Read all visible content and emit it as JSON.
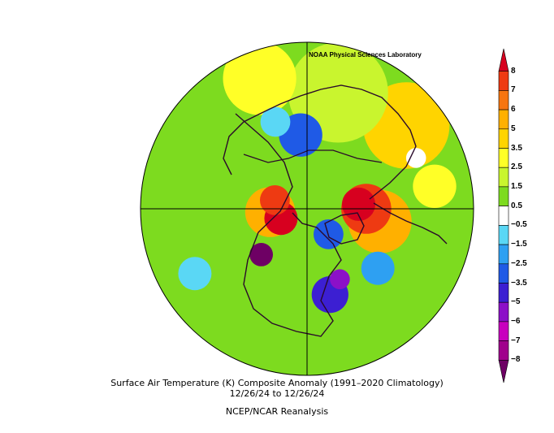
{
  "credit": "NOAA Physical Sciences Laboratory",
  "title_line1": "Surface Air Temperature (K) Composite Anomaly (1991–2020 Climatology)",
  "title_line2": "12/26/24  to 12/26/24",
  "source": "NCEP/NCAR Reanalysis",
  "colorbar": {
    "labels": [
      "8",
      "7",
      "6",
      "5",
      "3.5",
      "2.5",
      "1.5",
      "0.5",
      "−0.5",
      "−1.5",
      "−2.5",
      "−3.5",
      "−5",
      "−6",
      "−7",
      "−8"
    ],
    "colors": [
      "#d7001f",
      "#ee3a12",
      "#f7750f",
      "#ffb000",
      "#ffd400",
      "#ffff27",
      "#c9f52e",
      "#7ddb1f",
      "#ffffff",
      "#5ad7f5",
      "#2ea0f2",
      "#1f5ae6",
      "#3c1fd2",
      "#8c10c8",
      "#c800be",
      "#a0008c",
      "#6e0064"
    ]
  },
  "map": {
    "projection": "north-polar-stereographic",
    "background": "#7ddb1f",
    "anomaly_patches": [
      {
        "color": "#ffd400",
        "lon": -130,
        "lat": 20,
        "r": 0.26
      },
      {
        "color": "#c9f52e",
        "lon": -165,
        "lat": 25,
        "r": 0.3
      },
      {
        "color": "#ffff27",
        "lon": 160,
        "lat": 15,
        "r": 0.22
      },
      {
        "color": "#ffb000",
        "lon": -80,
        "lat": 50,
        "r": 0.19
      },
      {
        "color": "#ee3a12",
        "lon": -90,
        "lat": 58,
        "r": 0.15
      },
      {
        "color": "#d7001f",
        "lon": -95,
        "lat": 62,
        "r": 0.1
      },
      {
        "color": "#ffb000",
        "lon": 85,
        "lat": 70,
        "r": 0.15
      },
      {
        "color": "#d7001f",
        "lon": 70,
        "lat": 75,
        "r": 0.1
      },
      {
        "color": "#ee3a12",
        "lon": 105,
        "lat": 72,
        "r": 0.09
      },
      {
        "color": "#6e0064",
        "lon": 45,
        "lat": 55,
        "r": 0.07
      },
      {
        "color": "#1f5ae6",
        "lon": 175,
        "lat": 50,
        "r": 0.13
      },
      {
        "color": "#5ad7f5",
        "lon": 160,
        "lat": 40,
        "r": 0.09
      },
      {
        "color": "#3c1fd2",
        "lon": -15,
        "lat": 42,
        "r": 0.11
      },
      {
        "color": "#8c10c8",
        "lon": -25,
        "lat": 48,
        "r": 0.06
      },
      {
        "color": "#1f5ae6",
        "lon": -40,
        "lat": 72,
        "r": 0.09
      },
      {
        "color": "#2ea0f2",
        "lon": -50,
        "lat": 40,
        "r": 0.1
      },
      {
        "color": "#5ad7f5",
        "lon": 60,
        "lat": 20,
        "r": 0.1
      },
      {
        "color": "#ffff27",
        "lon": -100,
        "lat": 20,
        "r": 0.13
      },
      {
        "color": "#ffffff",
        "lon": -115,
        "lat": 25,
        "r": 0.06
      }
    ]
  }
}
